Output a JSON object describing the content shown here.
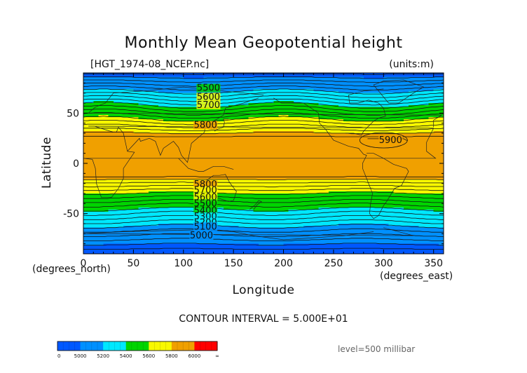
{
  "title": "Monthly Mean Geopotential height",
  "file_label": "[HGT_1974-08_NCEP.nc]",
  "units_label": "(units:m)",
  "contour_interval": "CONTOUR INTERVAL = 5.000E+01",
  "level_label": "level=500 millibar",
  "chart_data": {
    "type": "heatmap",
    "title": "Monthly Mean Geopotential height",
    "xlabel": "Longitude",
    "ylabel": "Latitude",
    "x_unit_label": "(degrees_east)",
    "y_unit_label": "(degrees_north)",
    "xlim": [
      0,
      360
    ],
    "ylim": [
      -90,
      90
    ],
    "x_ticks": [
      0,
      50,
      100,
      150,
      200,
      250,
      300,
      350
    ],
    "y_ticks": [
      50,
      0,
      -50
    ],
    "contour_interval": 50,
    "contour_labels": [
      {
        "text": "5500",
        "lon": 125,
        "lat": 75
      },
      {
        "text": "5600",
        "lon": 125,
        "lat": 66
      },
      {
        "text": "5700",
        "lon": 125,
        "lat": 58
      },
      {
        "text": "5800",
        "lon": 122,
        "lat": 38
      },
      {
        "text": "5900",
        "lon": 307,
        "lat": 23
      },
      {
        "text": "5800",
        "lon": 122,
        "lat": -21
      },
      {
        "text": "5700",
        "lon": 122,
        "lat": -27
      },
      {
        "text": "5600",
        "lon": 122,
        "lat": -34
      },
      {
        "text": "5500",
        "lon": 122,
        "lat": -40
      },
      {
        "text": "5400",
        "lon": 122,
        "lat": -47
      },
      {
        "text": "5300",
        "lon": 122,
        "lat": -53
      },
      {
        "text": "5200",
        "lon": 122,
        "lat": -59
      },
      {
        "text": "5100",
        "lon": 122,
        "lat": -63
      },
      {
        "text": "5000",
        "lon": 118,
        "lat": -72
      }
    ],
    "colorbar": {
      "labels": [
        "0",
        "5000",
        "5200",
        "5400",
        "5600",
        "5800",
        "6000",
        "∞"
      ],
      "colors": [
        "#0058ff",
        "#0090ff",
        "#00e8ff",
        "#00d400",
        "#f8f800",
        "#f0a000",
        "#ff0000"
      ]
    }
  }
}
